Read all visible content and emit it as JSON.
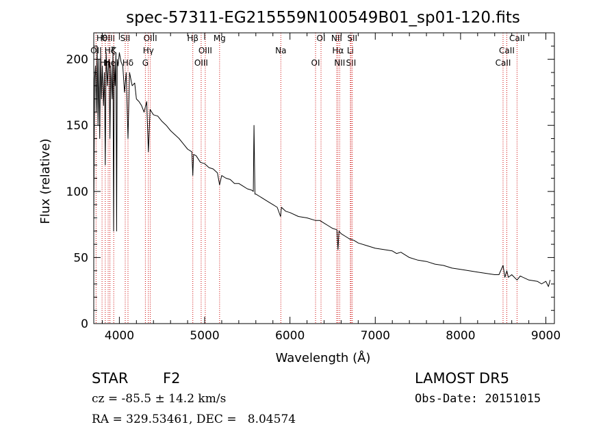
{
  "chart_data": {
    "type": "line",
    "title": "spec-57311-EG215559N100549B01_sp01-120.fits",
    "xlabel": "Wavelength (Å)",
    "ylabel": "Flux (relative)",
    "xlim": [
      3700,
      9100
    ],
    "ylim": [
      0,
      220
    ],
    "xticks": [
      4000,
      5000,
      6000,
      7000,
      8000,
      9000
    ],
    "yticks": [
      0,
      50,
      100,
      150,
      200
    ],
    "grid": false,
    "series": [
      {
        "x": [
          3700,
          3710,
          3720,
          3730,
          3740,
          3750,
          3760,
          3770,
          3780,
          3790,
          3800,
          3815,
          3825,
          3835,
          3845,
          3860,
          3870,
          3880,
          3889,
          3900,
          3915,
          3925,
          3933,
          3940,
          3950,
          3960,
          3968,
          3975,
          3985,
          4000,
          4020,
          4040,
          4060,
          4080,
          4101,
          4120,
          4150,
          4180,
          4200,
          4230,
          4260,
          4290,
          4320,
          4340,
          4360,
          4380,
          4400,
          4450,
          4500,
          4550,
          4600,
          4650,
          4700,
          4750,
          4800,
          4850,
          4861,
          4870,
          4900,
          4950,
          5000,
          5050,
          5100,
          5150,
          5175,
          5200,
          5250,
          5300,
          5350,
          5400,
          5450,
          5500,
          5550,
          5570,
          5578,
          5590,
          5600,
          5650,
          5700,
          5750,
          5800,
          5850,
          5890,
          5900,
          5950,
          6000,
          6100,
          6200,
          6300,
          6350,
          6400,
          6450,
          6500,
          6550,
          6563,
          6575,
          6600,
          6650,
          6700,
          6750,
          6800,
          6900,
          7000,
          7100,
          7200,
          7250,
          7300,
          7400,
          7500,
          7600,
          7700,
          7800,
          7900,
          8000,
          8100,
          8200,
          8300,
          8400,
          8450,
          8498,
          8520,
          8542,
          8560,
          8600,
          8662,
          8700,
          8800,
          8900,
          8950,
          9000,
          9030,
          9050
        ],
        "y": [
          80,
          185,
          195,
          160,
          210,
          150,
          200,
          140,
          205,
          170,
          195,
          165,
          190,
          120,
          205,
          180,
          195,
          200,
          140,
          195,
          170,
          205,
          70,
          195,
          180,
          205,
          70,
          200,
          195,
          205,
          198,
          195,
          175,
          190,
          140,
          190,
          180,
          182,
          170,
          168,
          165,
          160,
          168,
          130,
          162,
          160,
          158,
          157,
          153,
          150,
          146,
          143,
          140,
          136,
          132,
          130,
          112,
          128,
          127,
          122,
          121,
          118,
          117,
          114,
          105,
          112,
          110,
          109,
          106,
          106,
          104,
          102,
          101,
          100,
          150,
          98,
          98,
          96,
          94,
          92,
          90,
          88,
          81,
          88,
          85,
          84,
          81,
          80,
          78,
          78,
          76,
          74,
          72,
          71,
          56,
          70,
          68,
          66,
          64,
          63,
          61,
          59,
          57,
          56,
          55,
          53,
          54,
          50,
          48,
          47,
          45,
          44,
          42,
          41,
          40,
          39,
          38,
          37,
          37,
          44,
          35,
          40,
          35,
          37,
          33,
          36,
          33,
          32,
          30,
          32,
          28,
          33
        ]
      }
    ],
    "lines_top": [
      {
        "label": "Hθ",
        "x": 3797
      },
      {
        "label": "OII",
        "x": 3727
      },
      {
        "label": "Hη",
        "x": 3835
      },
      {
        "label": "OIII",
        "x": 3869
      },
      {
        "label": "K",
        "x": 3934
      },
      {
        "label": "He",
        "x": 3889
      },
      {
        "label": "SII",
        "x": 4069
      },
      {
        "label": "Hζ",
        "x": 3889
      },
      {
        "label": "Hδ",
        "x": 4101
      },
      {
        "label": "OIII",
        "x": 4363
      },
      {
        "label": "Hγ",
        "x": 4340
      },
      {
        "label": "G",
        "x": 4305
      },
      {
        "label": "Hβ",
        "x": 4861
      },
      {
        "label": "OIII",
        "x": 5007
      },
      {
        "label": "OIII",
        "x": 4959
      },
      {
        "label": "Mg",
        "x": 5175
      },
      {
        "label": "Na",
        "x": 5893
      },
      {
        "label": "OI",
        "x": 6300
      },
      {
        "label": "OI",
        "x": 6364
      },
      {
        "label": "Hα",
        "x": 6563
      },
      {
        "label": "SII",
        "x": 6716
      },
      {
        "label": "NII",
        "x": 6548
      },
      {
        "label": "Li",
        "x": 6708
      },
      {
        "label": "NII",
        "x": 6583
      },
      {
        "label": "SII",
        "x": 6731
      },
      {
        "label": "CaII",
        "x": 8542
      },
      {
        "label": "CaII",
        "x": 8498
      },
      {
        "label": "CaII",
        "x": 8662
      }
    ]
  },
  "info": {
    "object_class": "STAR",
    "subclass": "F2",
    "survey": "LAMOST DR5",
    "redshift": "cz = -85.5 ± 14.2 km/s",
    "obs_date": "Obs-Date: 20151015",
    "coords": "RA = 329.53461, DEC =   8.04574"
  }
}
